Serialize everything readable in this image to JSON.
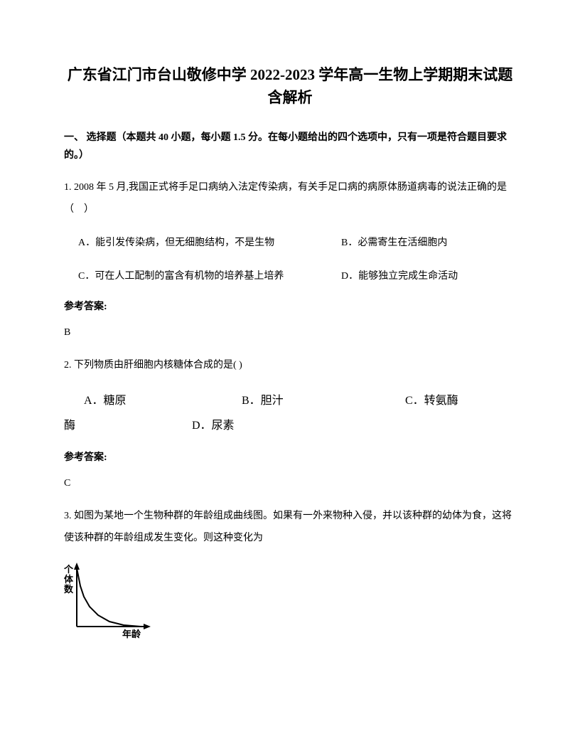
{
  "title": "广东省江门市台山敬修中学 2022-2023 学年高一生物上学期期末试题含解析",
  "section1": {
    "header": "一、 选择题（本题共 40 小题，每小题 1.5 分。在每小题给出的四个选项中，只有一项是符合题目要求的。）"
  },
  "q1": {
    "stem": "1. 2008 年 5 月,我国正式将手足口病纳入法定传染病，有关手足口病的病原体肠道病毒的说法正确的是（　）",
    "optA": "A．能引发传染病，但无细胞结构，不是生物",
    "optB": "B．必需寄生在活细胞内",
    "optC": "C．可在人工配制的富含有机物的培养基上培养",
    "optD": "D．能够独立完成生命活动",
    "answerLabel": "参考答案:",
    "answer": "B"
  },
  "q2": {
    "stem": "2. 下列物质由肝细胞内核糖体合成的是(  )",
    "optA": "A．糖原",
    "optB": "B．胆汁",
    "optC": "C．转氨酶",
    "optD": "D．尿素",
    "mei": "酶",
    "answerLabel": "参考答案:",
    "answer": "C"
  },
  "q3": {
    "stem": "3. 如图为某地一个生物种群的年龄组成曲线图。如果有一外来物种入侵，并以该种群的幼体为食，这将使该种群的年龄组成发生变化。则这种变化为",
    "chart": {
      "type": "line",
      "ylabel": "个体数",
      "xlabel": "年龄",
      "stroke_color": "#000000",
      "stroke_width": 2,
      "curve_points": [
        [
          18,
          10
        ],
        [
          20,
          20
        ],
        [
          23,
          35
        ],
        [
          28,
          50
        ],
        [
          36,
          64
        ],
        [
          48,
          76
        ],
        [
          64,
          85
        ],
        [
          84,
          90
        ],
        [
          108,
          92
        ]
      ],
      "background_color": "#ffffff"
    }
  }
}
